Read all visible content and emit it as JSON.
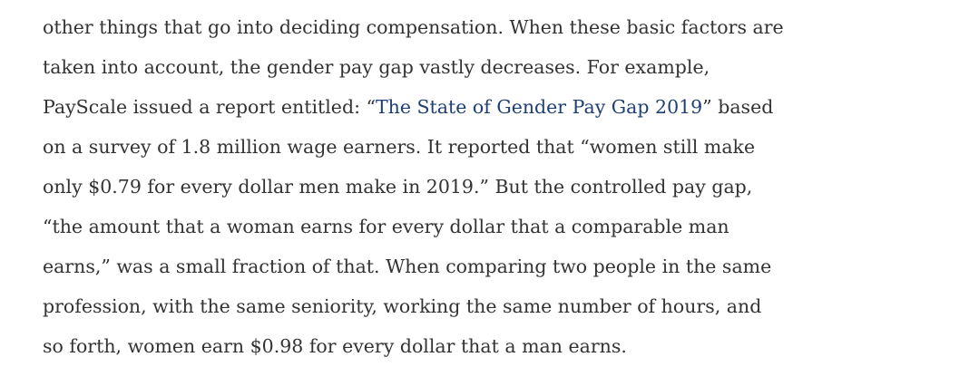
{
  "paragraph": {
    "lines": [
      "other things that go into deciding compensation. When these basic factors are",
      "taken into account, the gender pay gap vastly decreases. For example,",
      {
        "before": "PayScale issued a report entitled: “",
        "link": "The State of Gender Pay Gap 2019",
        "after": "” based"
      },
      "on a survey of 1.8 million wage earners. It reported that “women still make",
      "only $0.79 for every dollar men make in 2019.” But the controlled pay gap,",
      "“the amount that a woman earns for every dollar that a comparable man",
      "earns,” was a small fraction of that. When comparing two people in the same",
      "profession, with the same seniority, working the same number of hours, and",
      "so forth, women earn $0.98 for every dollar that a man earns."
    ]
  }
}
